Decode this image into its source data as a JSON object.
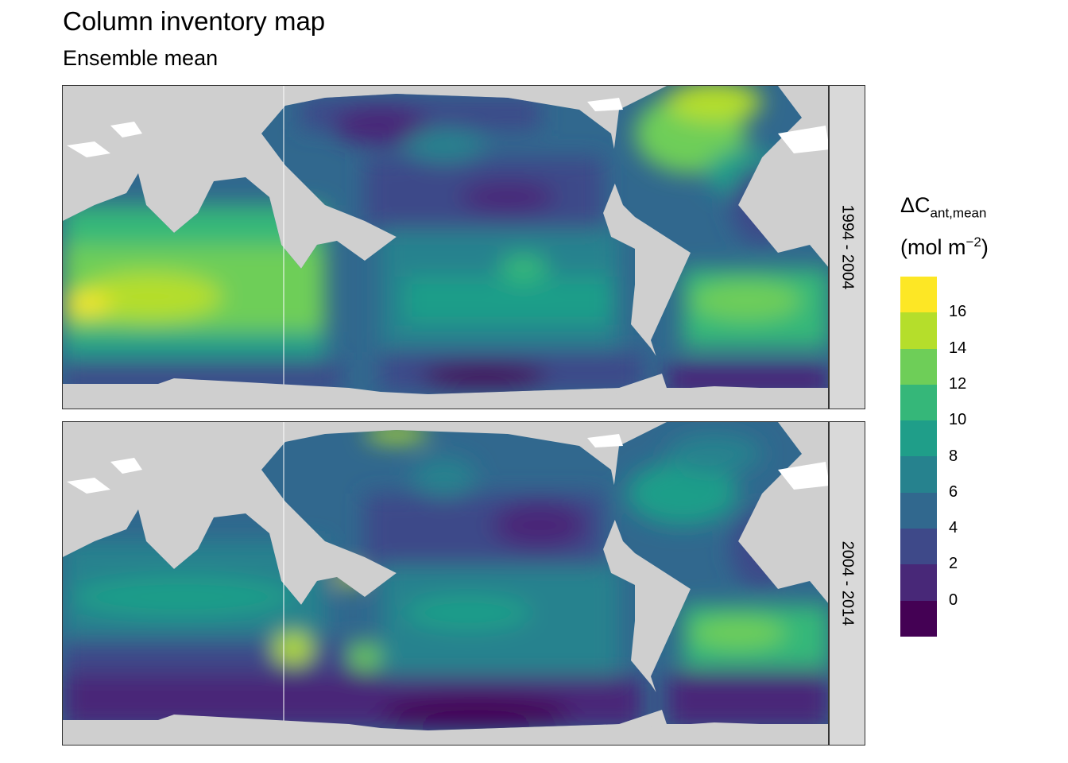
{
  "title": "Column inventory map",
  "subtitle": "Ensemble mean",
  "panels": [
    {
      "label": "1994 - 2004"
    },
    {
      "label": "2004 - 2014"
    }
  ],
  "legend": {
    "title_main": "ΔC",
    "title_sub": "ant,mean",
    "unit_prefix": "(mol m",
    "unit_sup": "−2",
    "unit_suffix": ")",
    "ticks": [
      "16",
      "14",
      "12",
      "10",
      "8",
      "6",
      "4",
      "2",
      "0"
    ],
    "colors": [
      "#fde725",
      "#b5de2b",
      "#6ece58",
      "#35b779",
      "#1f9e89",
      "#26828e",
      "#31688e",
      "#3e4989",
      "#482878",
      "#440154"
    ]
  },
  "colors": {
    "land": "#cfcfcf",
    "ice": "#ffffff",
    "panel_border": "#333333",
    "strip_bg": "#d9d9d9"
  }
}
